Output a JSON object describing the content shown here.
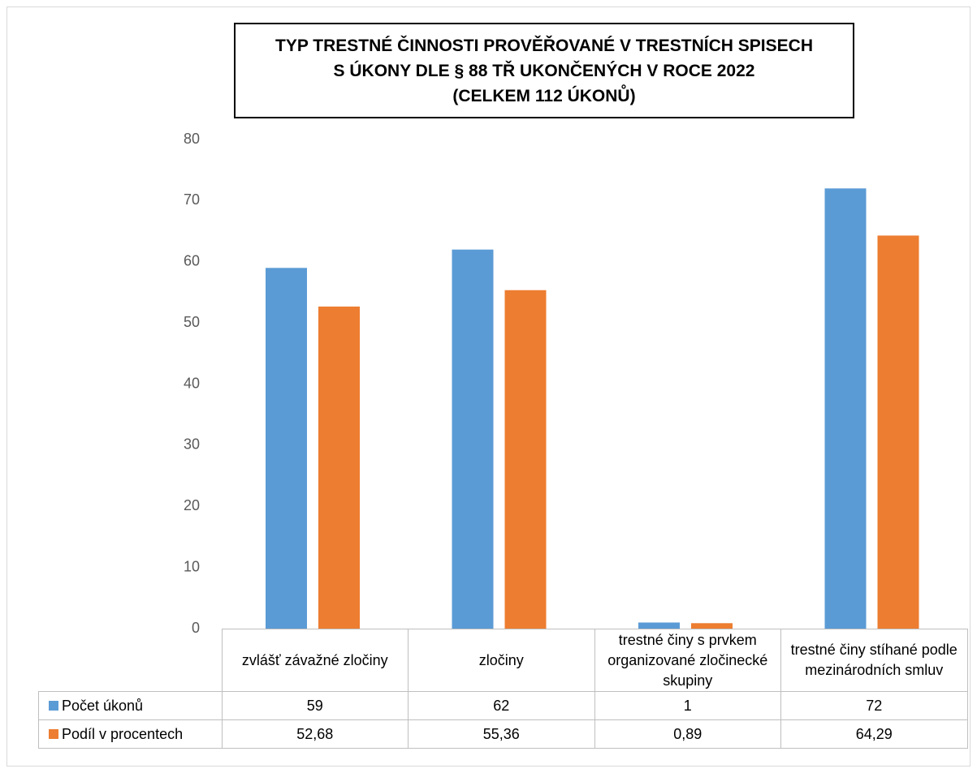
{
  "chart_data": {
    "type": "bar",
    "title": [
      "TYP TRESTNÉ ČINNOSTI PROVĚŘOVANÉ V TRESTNÍCH SPISECH",
      "S ÚKONY DLE § 88 TŘ UKONČENÝCH V ROCE 2022",
      "(CELKEM 112 ÚKONŮ)"
    ],
    "categories": [
      "zvlášť závažné zločiny",
      "zločiny",
      "trestné činy s prvkem organizované zločinecké skupiny",
      "trestné činy stíhané podle mezinárodních smluv"
    ],
    "series": [
      {
        "name": "Počet úkonů",
        "color": "#5b9bd5",
        "values": [
          59,
          62,
          1,
          72
        ]
      },
      {
        "name": "Podíl v procentech",
        "color": "#ed7d31",
        "values": [
          52.68,
          55.36,
          0.89,
          64.29
        ],
        "value_labels": [
          "52,68",
          "55,36",
          "0,89",
          "64,29"
        ]
      }
    ],
    "ylim": [
      0,
      80
    ],
    "yticks": [
      0,
      10,
      20,
      30,
      40,
      50,
      60,
      70,
      80
    ],
    "grid": false
  }
}
